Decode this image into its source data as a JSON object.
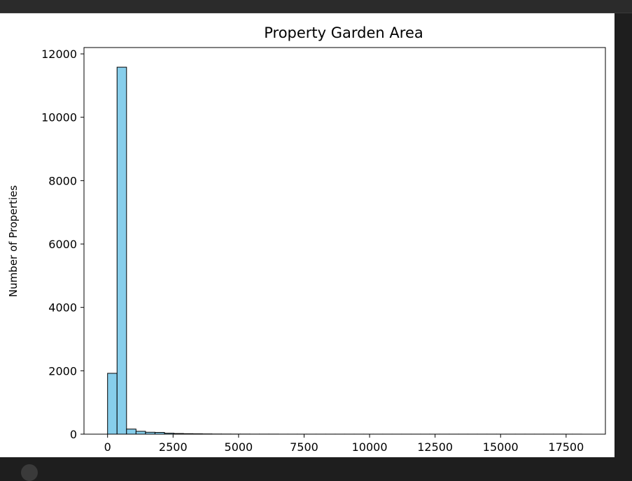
{
  "chart_data": {
    "type": "bar",
    "title": "Property Garden  Area",
    "xlabel": "",
    "ylabel": "Number of Properties",
    "xlim": [
      -900,
      19000
    ],
    "ylim": [
      0,
      12200
    ],
    "xticks": [
      0,
      2500,
      5000,
      7500,
      10000,
      12500,
      15000,
      17500
    ],
    "yticks": [
      0,
      2000,
      4000,
      6000,
      8000,
      10000,
      12000
    ],
    "bin_start": 0,
    "bin_width": 362,
    "values": [
      1920,
      11580,
      160,
      90,
      60,
      55,
      30,
      20,
      15,
      12,
      8,
      5,
      4,
      3,
      3,
      2,
      2,
      2,
      1,
      1,
      1,
      1,
      1,
      1,
      1,
      1,
      1,
      1,
      1,
      1,
      1,
      1,
      1,
      1,
      1,
      1,
      1,
      1,
      1,
      1,
      1,
      1,
      1,
      1,
      1,
      1,
      1,
      1,
      1,
      1
    ],
    "bar_color": "#87ceeb",
    "edge_color": "#000000",
    "grid": false,
    "legend": "none"
  }
}
